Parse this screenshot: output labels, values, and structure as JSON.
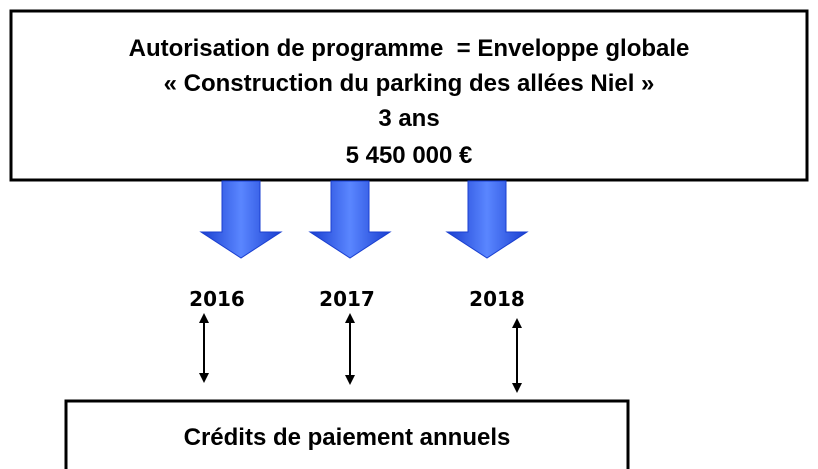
{
  "header": {
    "lines": [
      "Autorisation de programme  = Enveloppe globale",
      "« Construction du parking des allées Niel »",
      "3 ans",
      "5 450 000 €"
    ]
  },
  "years": [
    "2016",
    "2017",
    "2018"
  ],
  "footer": {
    "text": "Crédits de paiement annuels"
  }
}
